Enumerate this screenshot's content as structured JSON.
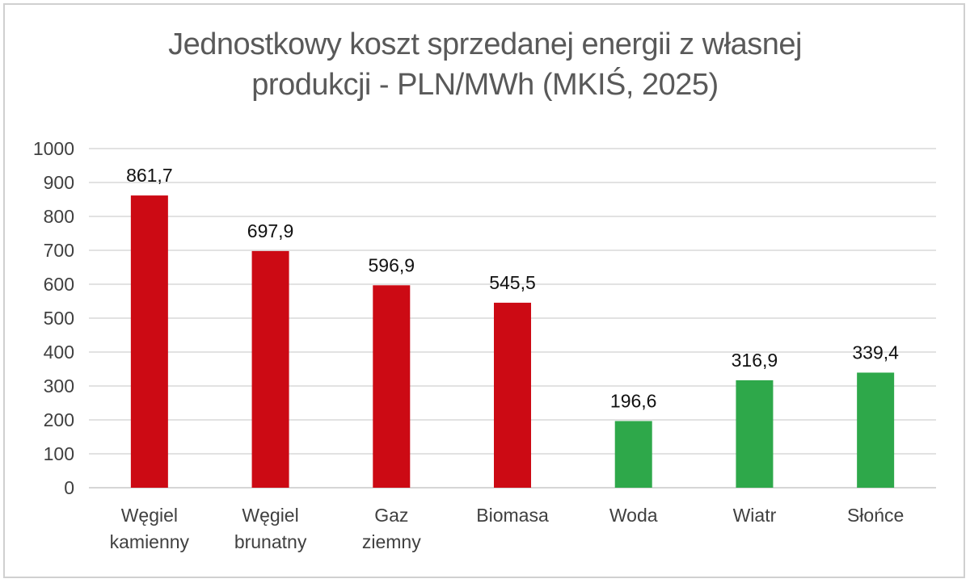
{
  "chart_data": {
    "type": "bar",
    "title_lines": [
      "Jednostkowy koszt sprzedanej energii z własnej",
      "produkcji - PLN/MWh (MKIŚ, 2025)"
    ],
    "categories": [
      [
        "Węgiel",
        "kamienny"
      ],
      [
        "Węgiel",
        "brunatny"
      ],
      [
        "Gaz",
        "ziemny"
      ],
      [
        "Biomasa"
      ],
      [
        "Woda"
      ],
      [
        "Wiatr"
      ],
      [
        "Słońce"
      ]
    ],
    "values": [
      861.7,
      697.9,
      596.9,
      545.5,
      196.6,
      316.9,
      339.4
    ],
    "value_labels": [
      "861,7",
      "697,9",
      "596,9",
      "545,5",
      "196,6",
      "316,9",
      "339,4"
    ],
    "bar_colors": [
      "#cc0a14",
      "#cc0a14",
      "#cc0a14",
      "#cc0a14",
      "#2ea84a",
      "#2ea84a",
      "#2ea84a"
    ],
    "ylim": [
      0,
      1000
    ],
    "yticks": [
      0,
      100,
      200,
      300,
      400,
      500,
      600,
      700,
      800,
      900,
      1000
    ],
    "grid": true,
    "legend": "none"
  }
}
